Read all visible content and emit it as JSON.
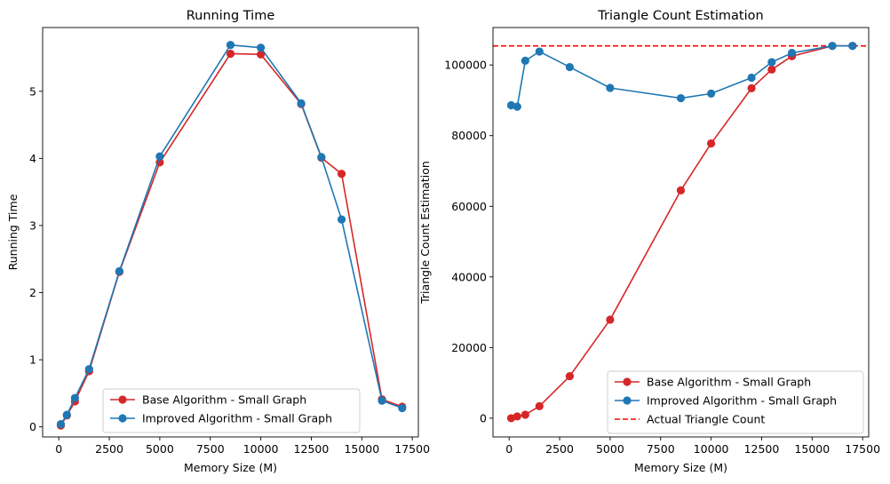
{
  "chart_data": [
    {
      "type": "line",
      "title": "Running Time",
      "xlabel": "Memory Size (M)",
      "ylabel": "Running Time",
      "xlim": [
        -800,
        17800
      ],
      "ylim": [
        -0.15,
        5.95
      ],
      "xticks": [
        0,
        2500,
        5000,
        7500,
        10000,
        12500,
        15000,
        17500
      ],
      "yticks": [
        0,
        1,
        2,
        3,
        4,
        5
      ],
      "legend_position": "lower center",
      "series": [
        {
          "name": "Base Algorithm - Small Graph",
          "color": "#d62728",
          "x": [
            100,
            400,
            800,
            1500,
            3000,
            5000,
            8500,
            10000,
            12000,
            13000,
            14000,
            16000,
            17000
          ],
          "y": [
            0.02,
            0.17,
            0.38,
            0.83,
            2.31,
            3.94,
            5.56,
            5.55,
            4.81,
            4.01,
            3.77,
            0.41,
            0.3
          ]
        },
        {
          "name": "Improved Algorithm - Small Graph",
          "color": "#1f77b4",
          "x": [
            100,
            400,
            800,
            1500,
            3000,
            5000,
            8500,
            10000,
            12000,
            13000,
            14000,
            16000,
            17000
          ],
          "y": [
            0.04,
            0.18,
            0.43,
            0.86,
            2.32,
            4.03,
            5.69,
            5.65,
            4.82,
            4.02,
            3.09,
            0.39,
            0.28
          ]
        }
      ]
    },
    {
      "type": "line",
      "title": "Triangle Count Estimation",
      "xlabel": "Memory Size (M)",
      "ylabel": "Triangle Count Estimation",
      "xlim": [
        -800,
        17800
      ],
      "ylim": [
        -5300,
        110600
      ],
      "xticks": [
        0,
        2500,
        5000,
        7500,
        10000,
        12500,
        15000,
        17500
      ],
      "yticks": [
        0,
        20000,
        40000,
        60000,
        80000,
        100000
      ],
      "legend_position": "lower right",
      "series": [
        {
          "name": "Base Algorithm - Small Graph",
          "color": "#d62728",
          "x": [
            100,
            400,
            800,
            1500,
            3000,
            5000,
            8500,
            10000,
            12000,
            13000,
            14000,
            16000,
            17000
          ],
          "y": [
            0,
            500,
            1000,
            3400,
            11900,
            27900,
            64500,
            77800,
            93400,
            98700,
            102500,
            105400,
            105400
          ]
        },
        {
          "name": "Improved Algorithm - Small Graph",
          "color": "#1f77b4",
          "x": [
            100,
            400,
            800,
            1500,
            3000,
            5000,
            8500,
            10000,
            12000,
            13000,
            14000,
            16000,
            17000
          ],
          "y": [
            88600,
            88200,
            101200,
            103800,
            99400,
            93500,
            90600,
            91900,
            96400,
            100800,
            103400,
            105400,
            105400
          ]
        }
      ],
      "reference_line": {
        "name": "Actual Triangle Count",
        "color": "#ff0000",
        "y": 105400,
        "style": "dashed"
      }
    }
  ]
}
